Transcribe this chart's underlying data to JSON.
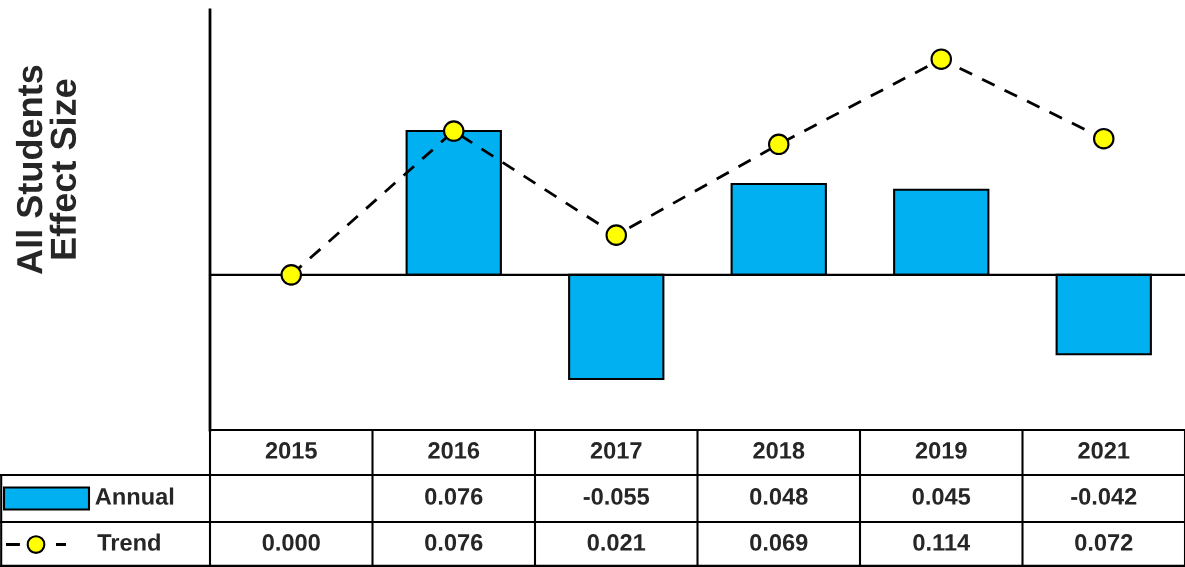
{
  "chart_data": {
    "type": "bar",
    "ylabel": "All Students\nEffect Size",
    "categories": [
      "2015",
      "2016",
      "2017",
      "2018",
      "2019",
      "2021"
    ],
    "ylim": [
      -0.082,
      0.14
    ],
    "series": [
      {
        "name": "Annual",
        "color": "#00b0f0",
        "values": [
          null,
          0.076,
          -0.055,
          0.048,
          0.045,
          -0.042
        ],
        "value_labels": [
          null,
          "0.076",
          "-0.055",
          "0.048",
          "0.045",
          "-0.042"
        ]
      },
      {
        "name": "Trend",
        "type": "line",
        "color": "#ffff00",
        "marker": "circle",
        "line_style": "dashed",
        "values": [
          0.0,
          0.076,
          0.021,
          0.069,
          0.114,
          0.072
        ],
        "value_labels": [
          "0.000",
          "0.076",
          "0.021",
          "0.069",
          "0.114",
          "0.072"
        ]
      }
    ],
    "legend": "bottom left"
  }
}
